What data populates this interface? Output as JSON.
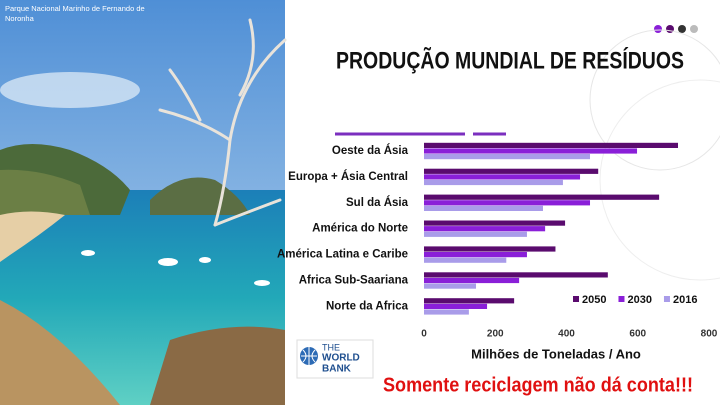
{
  "caption": [
    "Parque Nacional Marinho de Fernando de",
    "Noronha"
  ],
  "logo": [
    "THE",
    "WORLD",
    "BANK"
  ],
  "tagline": "Somente reciclagem não dá conta!!!",
  "chart_data": {
    "type": "bar",
    "orientation": "horizontal",
    "title": "PRODUÇÃO MUNDIAL DE RESÍDUOS",
    "xlabel": "Milhões de Toneladas / Ano",
    "categories": [
      "Oeste da Ásia",
      "Europa + Ásia Central",
      "Sul da Ásia",
      "América do Norte",
      "América Latina e Caribe",
      "Africa Sub-Saariana",
      "Norte da Africa"
    ],
    "series": [
      {
        "name": "2050",
        "color": "#5a0b6e",
        "values": [
          713,
          489,
          660,
          396,
          369,
          516,
          253
        ]
      },
      {
        "name": "2030",
        "color": "#8a1fd8",
        "values": [
          598,
          438,
          466,
          340,
          289,
          267,
          177
        ]
      },
      {
        "name": "2016",
        "color": "#a99ce9",
        "values": [
          466,
          390,
          334,
          289,
          231,
          146,
          126
        ]
      }
    ],
    "xlim": [
      0,
      800
    ],
    "xticks": [
      0,
      200,
      400,
      600,
      800
    ],
    "legend": "bottom-right"
  }
}
